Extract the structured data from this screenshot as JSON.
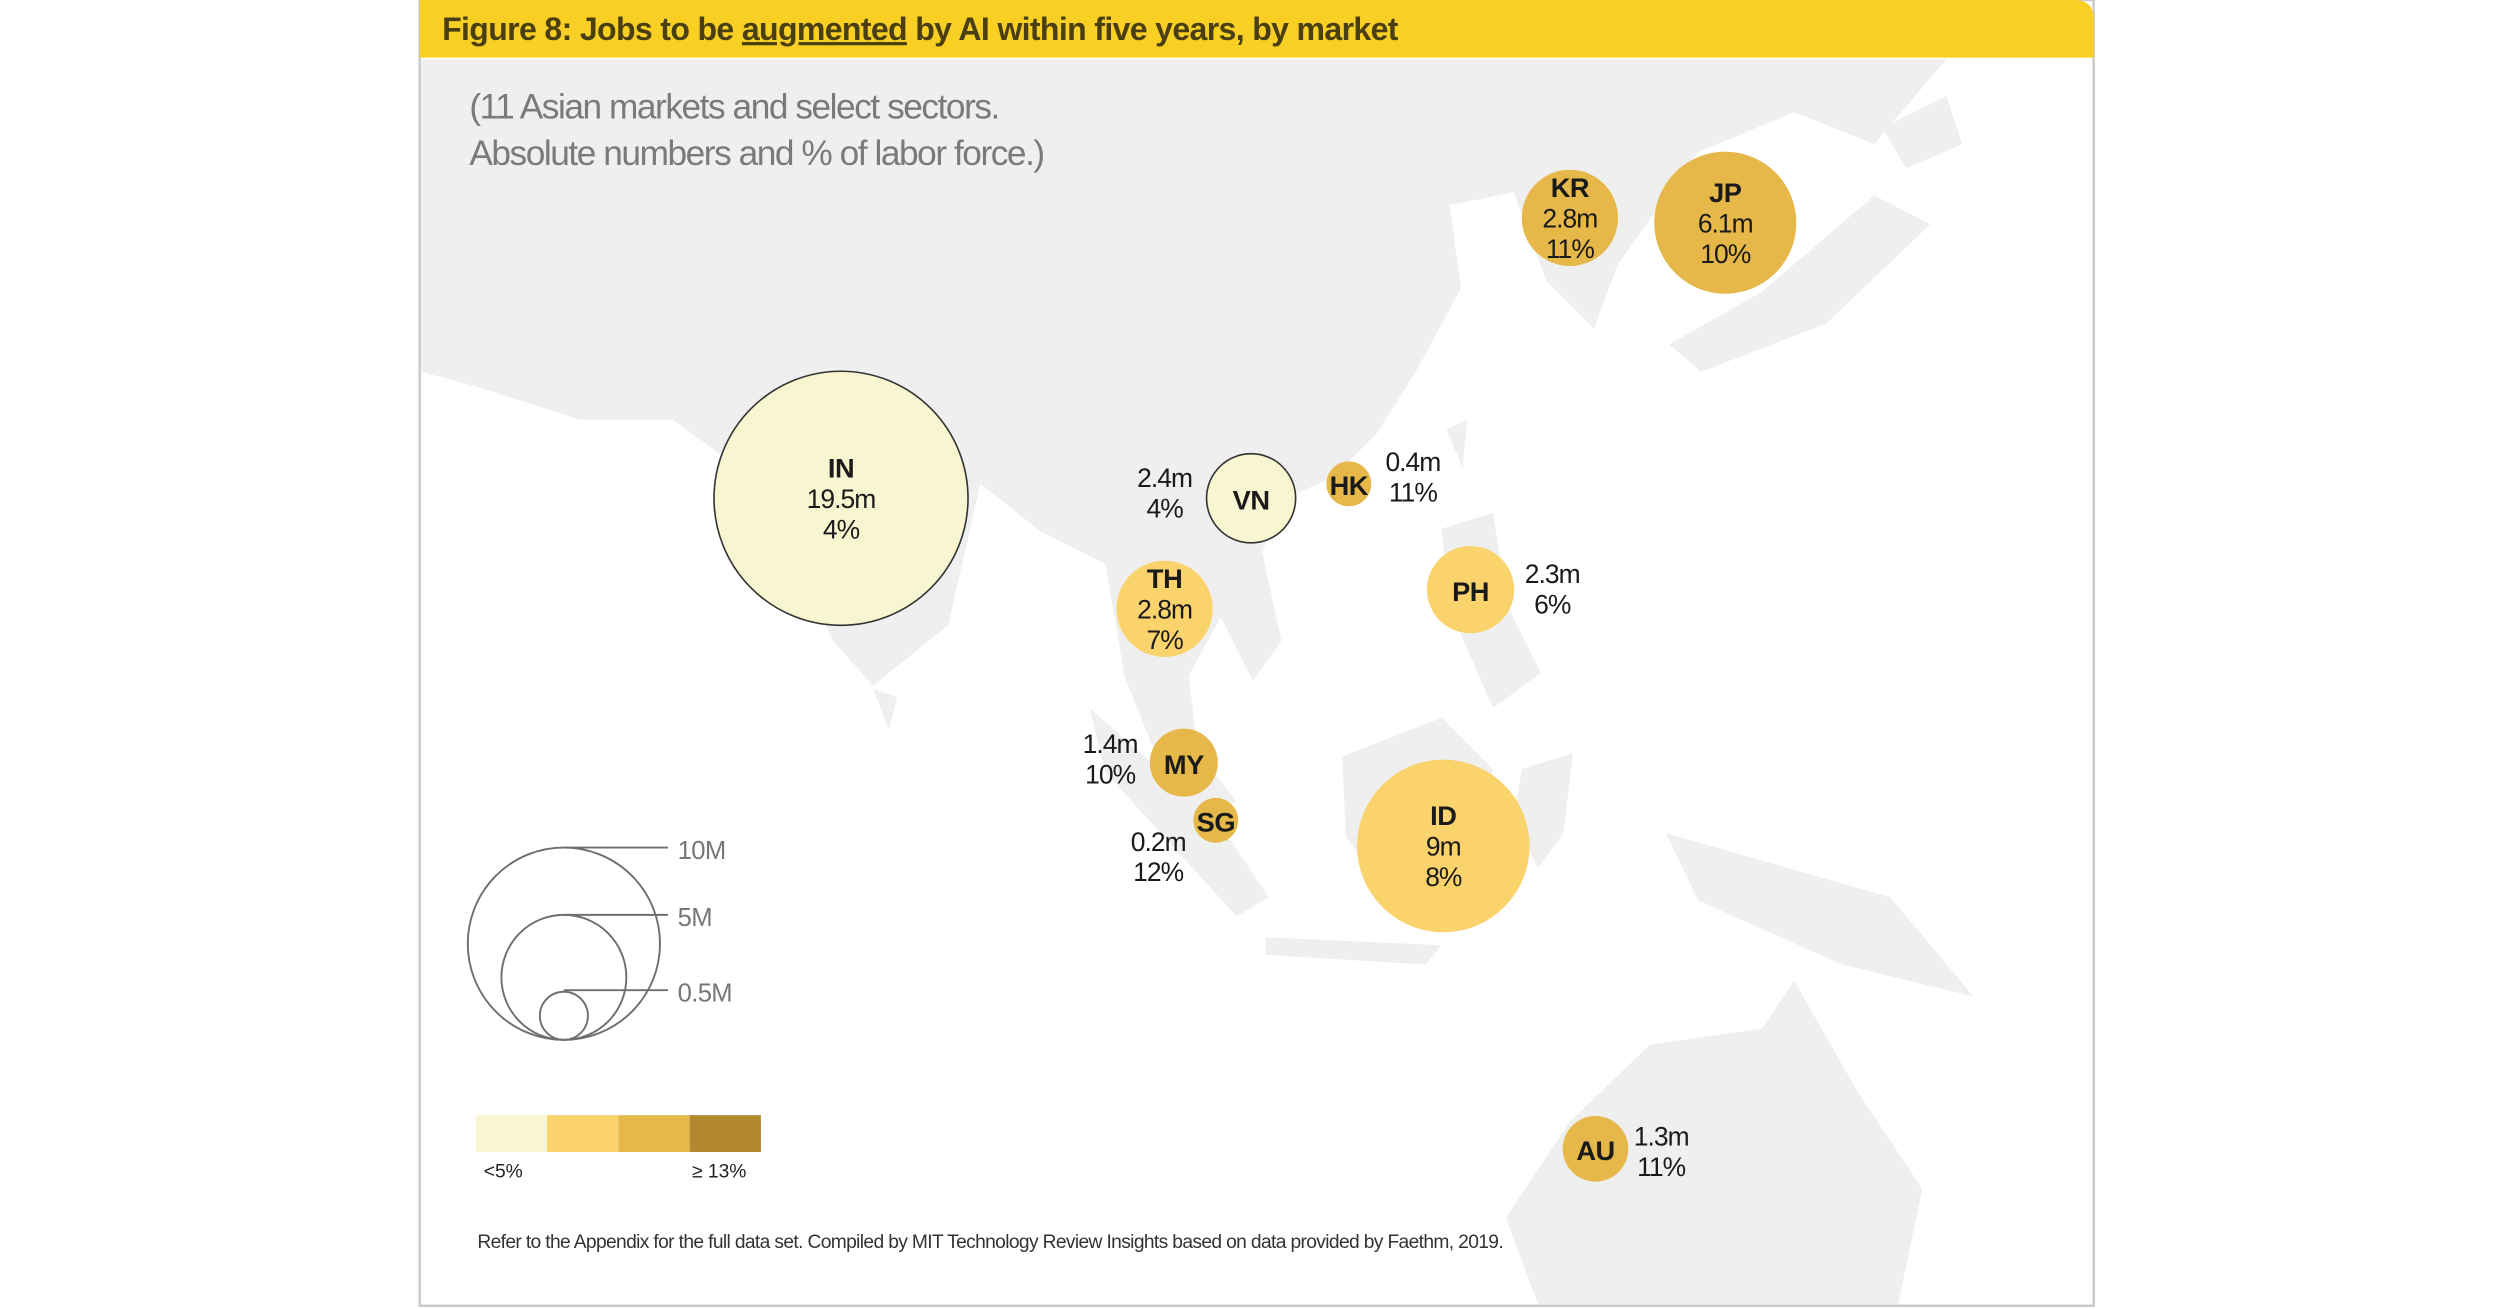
{
  "title": {
    "prefix": "Figure 8: Jobs to be ",
    "underlined": "augmented",
    "suffix": " by AI within five years, by market"
  },
  "subtitle": {
    "line1": "(11 Asian markets and select sectors.",
    "line2": "Absolute numbers and % of labor force.)"
  },
  "colors": {
    "title_bar": "#f9cf24",
    "land": "#efefef",
    "bins": [
      "#f8f6d0",
      "#fad36d",
      "#e6b84a",
      "#b2892f"
    ]
  },
  "chart_data": {
    "type": "bubble-map",
    "size_measure": "jobs to be augmented (millions)",
    "color_measure": "% of labor force",
    "markets": [
      {
        "code": "IN",
        "value": "19.5m",
        "pct": "4%",
        "jobs_m": 19.5,
        "pct_num": 4
      },
      {
        "code": "VN",
        "value": "2.4m",
        "pct": "4%",
        "jobs_m": 2.4,
        "pct_num": 4
      },
      {
        "code": "HK",
        "value": "0.4m",
        "pct": "11%",
        "jobs_m": 0.4,
        "pct_num": 11
      },
      {
        "code": "TH",
        "value": "2.8m",
        "pct": "7%",
        "jobs_m": 2.8,
        "pct_num": 7
      },
      {
        "code": "PH",
        "value": "2.3m",
        "pct": "6%",
        "jobs_m": 2.3,
        "pct_num": 6
      },
      {
        "code": "MY",
        "value": "1.4m",
        "pct": "10%",
        "jobs_m": 1.4,
        "pct_num": 10
      },
      {
        "code": "SG",
        "value": "0.2m",
        "pct": "12%",
        "jobs_m": 0.2,
        "pct_num": 12
      },
      {
        "code": "ID",
        "value": "9m",
        "pct": "8%",
        "jobs_m": 9,
        "pct_num": 8
      },
      {
        "code": "KR",
        "value": "2.8m",
        "pct": "11%",
        "jobs_m": 2.8,
        "pct_num": 11
      },
      {
        "code": "JP",
        "value": "6.1m",
        "pct": "10%",
        "jobs_m": 6.1,
        "pct_num": 10
      },
      {
        "code": "AU",
        "value": "1.3m",
        "pct": "11%",
        "jobs_m": 1.3,
        "pct_num": 11
      }
    ],
    "size_legend": [
      "10M",
      "5M",
      "0.5M"
    ],
    "color_legend": {
      "low_label": "<5%",
      "high_label": "≥ 13%"
    }
  },
  "footnote": "Refer to the Appendix for the full data set. Compiled by MIT Technology Review Insights based on data provided by Faethm, 2019."
}
